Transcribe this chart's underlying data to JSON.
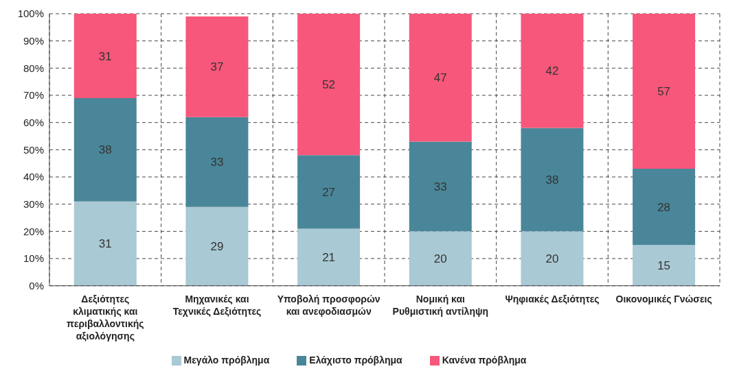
{
  "chart_data": {
    "type": "bar",
    "stacked": true,
    "categories": [
      "Δεξιότητες κλιματικής και περιβαλλοντικής αξιολόγησης",
      "Μηχανικές και Τεχνικές Δεξιότητες",
      "Υποβολή προσφορών και ανεφοδιασμών",
      "Νομική και Ρυθμιστική αντίληψη",
      "Ψηφιακές Δεξιότητες",
      "Οικονομικές Γνώσεις"
    ],
    "series": [
      {
        "name": "Μεγάλο πρόβλημα",
        "color": "#a9c9d4",
        "values": [
          31,
          29,
          21,
          20,
          20,
          15
        ]
      },
      {
        "name": "Ελάχιστο πρόβλημα",
        "color": "#4a8699",
        "values": [
          38,
          33,
          27,
          33,
          38,
          28
        ]
      },
      {
        "name": "Κανένα πρόβλημα",
        "color": "#f7577a",
        "values": [
          31,
          37,
          52,
          47,
          42,
          57
        ]
      }
    ],
    "ylim": [
      0,
      100
    ],
    "yticks": [
      {
        "value": 0,
        "label": "0%"
      },
      {
        "value": 10,
        "label": "10%"
      },
      {
        "value": 20,
        "label": "20%"
      },
      {
        "value": 30,
        "label": "30%"
      },
      {
        "value": 40,
        "label": "40%"
      },
      {
        "value": 50,
        "label": "50%"
      },
      {
        "value": 60,
        "label": "60%"
      },
      {
        "value": 70,
        "label": "70%"
      },
      {
        "value": 80,
        "label": "80%"
      },
      {
        "value": 90,
        "label": "90%"
      },
      {
        "value": 100,
        "label": "100%"
      }
    ],
    "grid": true,
    "legend": "bottom",
    "data_labels": true
  }
}
